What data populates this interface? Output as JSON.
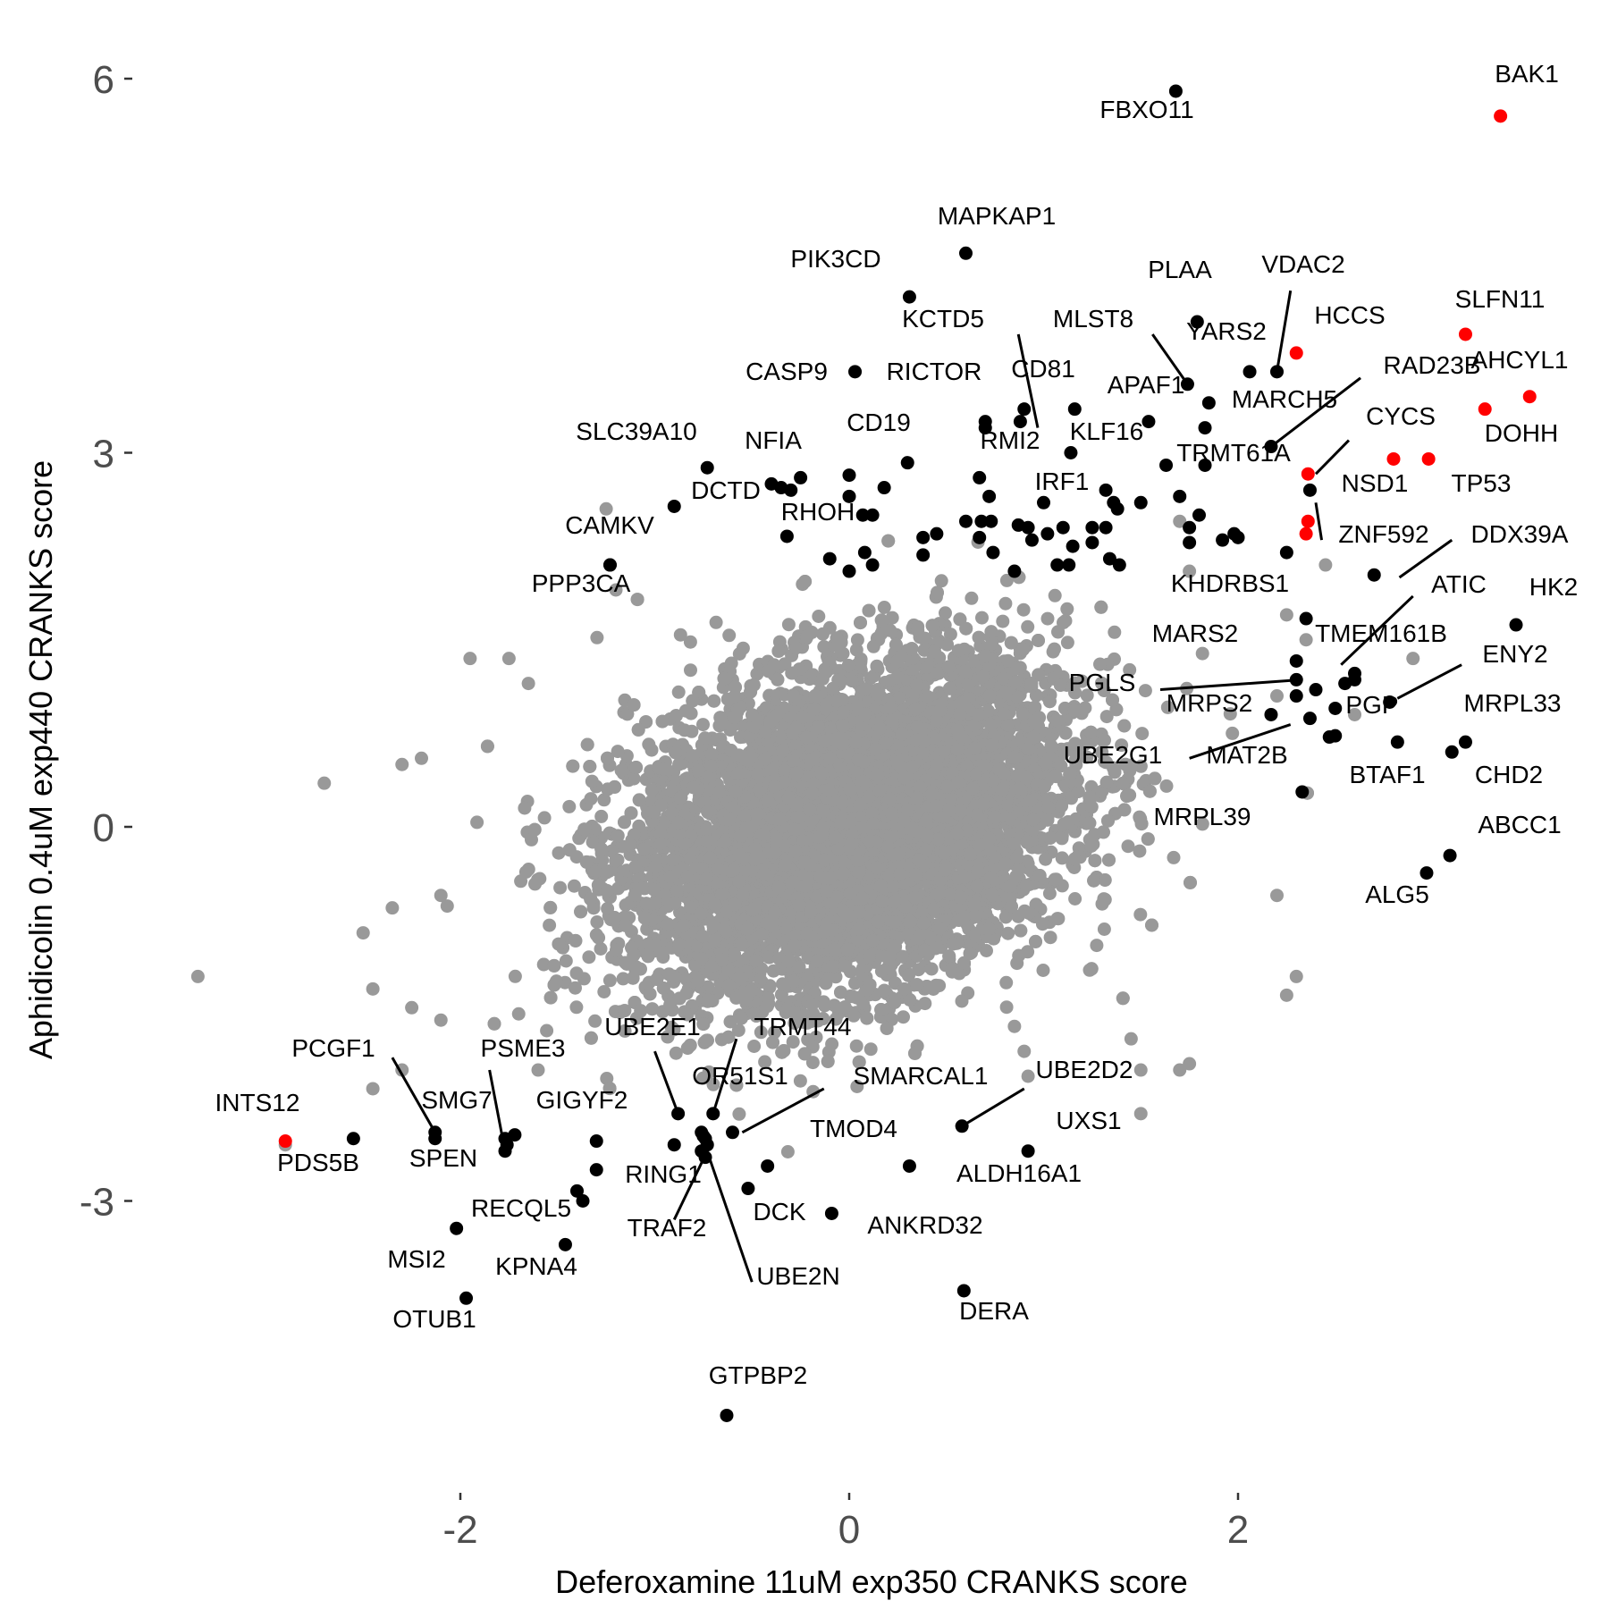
{
  "chart_data": {
    "type": "scatter",
    "title": "",
    "xlabel": "Deferoxamine 11uM exp350 CRANKS score",
    "ylabel": "Aphidicolin 0.4uM exp440 CRANKS score",
    "xlim": [
      -3.4,
      3.85
    ],
    "ylim": [
      -5.0,
      6.2
    ],
    "xticks": [
      -2,
      0,
      2
    ],
    "xtick_labels": [
      "-2",
      "0",
      "2"
    ],
    "yticks": [
      -3,
      0,
      3,
      6
    ],
    "ytick_labels": [
      "-3",
      "0",
      "3",
      "6"
    ],
    "grid": false,
    "legend": false,
    "colors": {
      "background": "#ffffff",
      "other_genes": "#999999",
      "highlight": "#000000",
      "highlight_red": "#ff0000",
      "tick_text": "#4d4d4d"
    },
    "background_cloud": {
      "center": [
        0.0,
        0.0
      ],
      "sd_x": 0.55,
      "sd_y": 0.65,
      "correlation": 0.3,
      "n_points": 9000
    },
    "labeled_points": [
      {
        "label": "BAK1",
        "x": 3.35,
        "y": 5.7,
        "color": "red"
      },
      {
        "label": "FBXO11",
        "x": 1.68,
        "y": 5.9,
        "color": "black"
      },
      {
        "label": "MAPKAP1",
        "x": 0.6,
        "y": 4.6,
        "color": "black"
      },
      {
        "label": "PIK3CD",
        "x": 0.31,
        "y": 4.25,
        "color": "black"
      },
      {
        "label": "PLAA",
        "x": 1.79,
        "y": 4.05,
        "color": "black"
      },
      {
        "label": "VDAC2",
        "x": 2.2,
        "y": 3.65,
        "color": "black"
      },
      {
        "label": "HCCS",
        "x": 2.3,
        "y": 3.8,
        "color": "red"
      },
      {
        "label": "SLFN11",
        "x": 3.17,
        "y": 3.95,
        "color": "red"
      },
      {
        "label": "AHCYL1",
        "x": 3.5,
        "y": 3.45,
        "color": "red"
      },
      {
        "label": "DOHH",
        "x": 3.27,
        "y": 3.35,
        "color": "red"
      },
      {
        "label": "TP53",
        "x": 2.98,
        "y": 2.95,
        "color": "red"
      },
      {
        "label": "CYCS",
        "x": 2.8,
        "y": 2.95,
        "color": "red"
      },
      {
        "label": "KCTD5",
        "x": 0.9,
        "y": 3.35,
        "color": "black"
      },
      {
        "label": "MLST8",
        "x": 1.74,
        "y": 3.55,
        "color": "black"
      },
      {
        "label": "YARS2",
        "x": 2.06,
        "y": 3.65,
        "color": "black"
      },
      {
        "label": "CASP9",
        "x": 0.03,
        "y": 3.65,
        "color": "black"
      },
      {
        "label": "RICTOR",
        "x": 0.7,
        "y": 3.2,
        "color": "black"
      },
      {
        "label": "CD81",
        "x": 0.88,
        "y": 3.25,
        "color": "black"
      },
      {
        "label": "APAF1",
        "x": 1.54,
        "y": 3.25,
        "color": "black"
      },
      {
        "label": "RAD23B",
        "x": 1.85,
        "y": 3.4,
        "color": "black"
      },
      {
        "label": "MARCH5",
        "x": 1.83,
        "y": 3.2,
        "color": "black"
      },
      {
        "label": "KLF16",
        "x": 1.16,
        "y": 3.35,
        "color": "black"
      },
      {
        "label": "RMI2",
        "x": 1.14,
        "y": 3.0,
        "color": "black"
      },
      {
        "label": "CD19",
        "x": 0.3,
        "y": 2.92,
        "color": "black"
      },
      {
        "label": "SLC39A10",
        "x": -0.73,
        "y": 2.88,
        "color": "black"
      },
      {
        "label": "NFIA",
        "x": -0.25,
        "y": 2.8,
        "color": "black"
      },
      {
        "label": "TRMT61A",
        "x": 2.17,
        "y": 3.05,
        "color": "black"
      },
      {
        "label": "NSD1",
        "x": 2.37,
        "y": 2.7,
        "color": "black"
      },
      {
        "label": "IRF1",
        "x": 1.32,
        "y": 2.7,
        "color": "black"
      },
      {
        "label": "DCTD",
        "x": -0.9,
        "y": 2.57,
        "color": "black"
      },
      {
        "label": "RHOH",
        "x": -0.32,
        "y": 2.33,
        "color": "black"
      },
      {
        "label": "ZNF592",
        "x": 2.35,
        "y": 2.35,
        "color": "red"
      },
      {
        "label": "DDX39A",
        "x": 2.7,
        "y": 2.02,
        "color": "black"
      },
      {
        "label": "CAMKV",
        "x": -1.23,
        "y": 2.1,
        "color": "black"
      },
      {
        "label": "PPP3CA",
        "x": -1.23,
        "y": 2.1,
        "color": "black"
      },
      {
        "label": "KHDRBS1",
        "x": 2.35,
        "y": 1.67,
        "color": "black"
      },
      {
        "label": "ATIC",
        "x": 2.6,
        "y": 1.23,
        "color": "black"
      },
      {
        "label": "HK2",
        "x": 3.43,
        "y": 1.62,
        "color": "black"
      },
      {
        "label": "MARS2",
        "x": 2.3,
        "y": 1.33,
        "color": "black"
      },
      {
        "label": "TMEM161B",
        "x": 2.55,
        "y": 1.15,
        "color": "black"
      },
      {
        "label": "PGLS",
        "x": 2.3,
        "y": 1.18,
        "color": "black"
      },
      {
        "label": "ENY2",
        "x": 2.78,
        "y": 1.0,
        "color": "black"
      },
      {
        "label": "PGP",
        "x": 2.5,
        "y": 0.73,
        "color": "black"
      },
      {
        "label": "MRPS2",
        "x": 2.37,
        "y": 0.87,
        "color": "black"
      },
      {
        "label": "MRPL33",
        "x": 3.17,
        "y": 0.68,
        "color": "black"
      },
      {
        "label": "UBE2G1",
        "x": 2.17,
        "y": 0.9,
        "color": "black"
      },
      {
        "label": "MAT2B",
        "x": 2.47,
        "y": 0.72,
        "color": "black"
      },
      {
        "label": "CHD2",
        "x": 3.1,
        "y": 0.6,
        "color": "black"
      },
      {
        "label": "BTAF1",
        "x": 2.82,
        "y": 0.68,
        "color": "black"
      },
      {
        "label": "MRPL39",
        "x": 2.33,
        "y": 0.28,
        "color": "black"
      },
      {
        "label": "ABCC1",
        "x": 3.09,
        "y": -0.23,
        "color": "black"
      },
      {
        "label": "ALG5",
        "x": 2.97,
        "y": -0.37,
        "color": "black"
      },
      {
        "label": "PCGF1",
        "x": -2.13,
        "y": -2.45,
        "color": "black"
      },
      {
        "label": "INTS12",
        "x": -2.9,
        "y": -2.52,
        "color": "red"
      },
      {
        "label": "PDS5B",
        "x": -2.55,
        "y": -2.5,
        "color": "black"
      },
      {
        "label": "PSME3",
        "x": -1.72,
        "y": -2.47,
        "color": "black"
      },
      {
        "label": "SMG7",
        "x": -2.13,
        "y": -2.5,
        "color": "black"
      },
      {
        "label": "SPEN",
        "x": -1.77,
        "y": -2.6,
        "color": "black"
      },
      {
        "label": "GIGYF2",
        "x": -1.3,
        "y": -2.52,
        "color": "black"
      },
      {
        "label": "UBE2E1",
        "x": -0.88,
        "y": -2.3,
        "color": "black"
      },
      {
        "label": "TRMT44",
        "x": -0.7,
        "y": -2.3,
        "color": "black"
      },
      {
        "label": "OR51S1",
        "x": -0.76,
        "y": -2.45,
        "color": "black"
      },
      {
        "label": "SMARCAL1",
        "x": -0.6,
        "y": -2.45,
        "color": "black"
      },
      {
        "label": "UBE2D2",
        "x": 0.58,
        "y": -2.4,
        "color": "black"
      },
      {
        "label": "UXS1",
        "x": 0.92,
        "y": -2.6,
        "color": "black"
      },
      {
        "label": "TMOD4",
        "x": -0.42,
        "y": -2.72,
        "color": "black"
      },
      {
        "label": "ALDH16A1",
        "x": 0.31,
        "y": -2.72,
        "color": "black"
      },
      {
        "label": "RING1",
        "x": -0.73,
        "y": -2.55,
        "color": "black"
      },
      {
        "label": "TRAF2",
        "x": -0.74,
        "y": -2.65,
        "color": "black"
      },
      {
        "label": "DCK",
        "x": -0.52,
        "y": -2.9,
        "color": "black"
      },
      {
        "label": "ANKRD32",
        "x": -0.09,
        "y": -3.1,
        "color": "black"
      },
      {
        "label": "UBE2N",
        "x": -0.75,
        "y": -2.48,
        "color": "black"
      },
      {
        "label": "RECQL5",
        "x": -1.37,
        "y": -3.0,
        "color": "black"
      },
      {
        "label": "MSI2",
        "x": -2.02,
        "y": -3.22,
        "color": "black"
      },
      {
        "label": "KPNA4",
        "x": -1.46,
        "y": -3.35,
        "color": "black"
      },
      {
        "label": "OTUB1",
        "x": -1.97,
        "y": -3.78,
        "color": "black"
      },
      {
        "label": "DERA",
        "x": 0.59,
        "y": -3.72,
        "color": "black"
      },
      {
        "label": "GTPBP2",
        "x": -0.63,
        "y": -4.72,
        "color": "black"
      }
    ],
    "unlabeled_highlight_points": [
      {
        "x": 2.36,
        "y": 2.45,
        "color": "red"
      },
      {
        "x": 2.36,
        "y": 2.83,
        "color": "red"
      },
      {
        "x": -0.4,
        "y": 2.75,
        "color": "black"
      },
      {
        "x": -0.3,
        "y": 2.7,
        "color": "black"
      },
      {
        "x": -0.35,
        "y": 2.72,
        "color": "black"
      },
      {
        "x": 0.0,
        "y": 2.82,
        "color": "black"
      },
      {
        "x": 0.18,
        "y": 2.72,
        "color": "black"
      },
      {
        "x": 0.0,
        "y": 2.65,
        "color": "black"
      },
      {
        "x": 0.07,
        "y": 2.5,
        "color": "black"
      },
      {
        "x": 0.12,
        "y": 2.5,
        "color": "black"
      },
      {
        "x": -0.1,
        "y": 2.15,
        "color": "black"
      },
      {
        "x": 0.08,
        "y": 2.2,
        "color": "black"
      },
      {
        "x": 0.12,
        "y": 2.1,
        "color": "black"
      },
      {
        "x": 0.0,
        "y": 2.05,
        "color": "black"
      },
      {
        "x": 0.38,
        "y": 2.32,
        "color": "black"
      },
      {
        "x": 0.38,
        "y": 2.18,
        "color": "black"
      },
      {
        "x": 0.7,
        "y": 3.25,
        "color": "black"
      },
      {
        "x": 0.67,
        "y": 2.8,
        "color": "black"
      },
      {
        "x": 0.72,
        "y": 2.65,
        "color": "black"
      },
      {
        "x": 0.6,
        "y": 2.45,
        "color": "black"
      },
      {
        "x": 0.68,
        "y": 2.45,
        "color": "black"
      },
      {
        "x": 0.73,
        "y": 2.45,
        "color": "black"
      },
      {
        "x": 0.67,
        "y": 2.32,
        "color": "black"
      },
      {
        "x": 0.74,
        "y": 2.2,
        "color": "black"
      },
      {
        "x": 0.87,
        "y": 2.42,
        "color": "black"
      },
      {
        "x": 0.92,
        "y": 2.4,
        "color": "black"
      },
      {
        "x": 0.94,
        "y": 2.3,
        "color": "black"
      },
      {
        "x": 1.0,
        "y": 2.6,
        "color": "black"
      },
      {
        "x": 1.02,
        "y": 2.35,
        "color": "black"
      },
      {
        "x": 1.1,
        "y": 2.4,
        "color": "black"
      },
      {
        "x": 0.85,
        "y": 2.05,
        "color": "black"
      },
      {
        "x": 1.07,
        "y": 2.1,
        "color": "black"
      },
      {
        "x": 1.13,
        "y": 2.1,
        "color": "black"
      },
      {
        "x": 1.15,
        "y": 2.25,
        "color": "black"
      },
      {
        "x": 1.25,
        "y": 2.28,
        "color": "black"
      },
      {
        "x": 1.25,
        "y": 2.4,
        "color": "black"
      },
      {
        "x": 1.36,
        "y": 2.6,
        "color": "black"
      },
      {
        "x": 1.38,
        "y": 2.55,
        "color": "black"
      },
      {
        "x": 1.39,
        "y": 2.1,
        "color": "black"
      },
      {
        "x": 1.34,
        "y": 2.15,
        "color": "black"
      },
      {
        "x": 1.32,
        "y": 2.4,
        "color": "black"
      },
      {
        "x": 1.5,
        "y": 2.6,
        "color": "black"
      },
      {
        "x": 1.63,
        "y": 2.9,
        "color": "black"
      },
      {
        "x": 1.7,
        "y": 2.65,
        "color": "black"
      },
      {
        "x": 1.75,
        "y": 2.4,
        "color": "black"
      },
      {
        "x": 1.75,
        "y": 2.28,
        "color": "black"
      },
      {
        "x": 1.8,
        "y": 2.5,
        "color": "black"
      },
      {
        "x": 1.83,
        "y": 2.9,
        "color": "black"
      },
      {
        "x": 1.92,
        "y": 2.3,
        "color": "black"
      },
      {
        "x": 1.98,
        "y": 2.35,
        "color": "black"
      },
      {
        "x": 2.0,
        "y": 2.32,
        "color": "black"
      },
      {
        "x": 2.25,
        "y": 2.2,
        "color": "black"
      },
      {
        "x": 2.4,
        "y": 1.1,
        "color": "black"
      },
      {
        "x": 2.3,
        "y": 1.05,
        "color": "black"
      },
      {
        "x": 2.6,
        "y": 1.18,
        "color": "black"
      },
      {
        "x": 2.5,
        "y": 0.95,
        "color": "black"
      },
      {
        "x": 0.45,
        "y": 2.35,
        "color": "black"
      },
      {
        "x": -0.9,
        "y": -2.55,
        "color": "black"
      },
      {
        "x": -1.77,
        "y": -2.5,
        "color": "black"
      },
      {
        "x": -1.76,
        "y": -2.55,
        "color": "black"
      },
      {
        "x": -1.3,
        "y": -2.75,
        "color": "black"
      },
      {
        "x": -1.4,
        "y": -2.92,
        "color": "black"
      },
      {
        "x": -0.74,
        "y": -2.5,
        "color": "black"
      },
      {
        "x": -0.76,
        "y": -2.6,
        "color": "black"
      }
    ],
    "extra_grey_points": [
      {
        "x": -3.35,
        "y": -1.2
      },
      {
        "x": -2.9,
        "y": -2.55
      },
      {
        "x": -2.7,
        "y": 0.35
      },
      {
        "x": -2.5,
        "y": -0.85
      },
      {
        "x": -2.45,
        "y": -1.3
      },
      {
        "x": -2.45,
        "y": -2.1
      },
      {
        "x": -2.3,
        "y": 0.5
      },
      {
        "x": -2.2,
        "y": 0.55
      },
      {
        "x": -2.35,
        "y": -0.65
      },
      {
        "x": -2.25,
        "y": -1.45
      },
      {
        "x": -2.3,
        "y": -1.95
      },
      {
        "x": -2.1,
        "y": -0.55
      },
      {
        "x": -2.1,
        "y": -1.55
      },
      {
        "x": -1.95,
        "y": 1.35
      },
      {
        "x": -1.75,
        "y": 1.35
      },
      {
        "x": -1.65,
        "y": 1.15
      },
      {
        "x": -1.7,
        "y": -1.5
      },
      {
        "x": -1.6,
        "y": -1.95
      },
      {
        "x": -1.25,
        "y": 2.55
      },
      {
        "x": -1.2,
        "y": 1.9
      },
      {
        "x": 1.7,
        "y": 2.45
      },
      {
        "x": 1.75,
        "y": 2.05
      },
      {
        "x": 2.2,
        "y": 1.05
      },
      {
        "x": 2.45,
        "y": 2.1
      },
      {
        "x": 2.25,
        "y": 1.7
      },
      {
        "x": 2.35,
        "y": 1.5
      },
      {
        "x": 2.6,
        "y": 0.9
      },
      {
        "x": 2.9,
        "y": 1.35
      },
      {
        "x": 2.2,
        "y": -0.55
      },
      {
        "x": 2.3,
        "y": -1.2
      },
      {
        "x": 2.25,
        "y": -1.35
      },
      {
        "x": 1.75,
        "y": -1.9
      },
      {
        "x": 1.7,
        "y": -1.95
      },
      {
        "x": 1.5,
        "y": -2.3
      },
      {
        "x": 1.45,
        "y": -1.7
      },
      {
        "x": 1.5,
        "y": -1.95
      },
      {
        "x": 0.9,
        "y": -1.8
      },
      {
        "x": 0.92,
        "y": -2.0
      },
      {
        "x": 0.85,
        "y": -1.6
      }
    ],
    "label_leader_lines": [
      {
        "from": [
          0.97,
          3.2
        ],
        "to": [
          0.87,
          3.95
        ]
      },
      {
        "from": [
          1.74,
          3.55
        ],
        "to": [
          1.56,
          3.95
        ]
      },
      {
        "from": [
          2.2,
          3.65
        ],
        "to": [
          2.27,
          4.3
        ]
      },
      {
        "from": [
          2.17,
          3.05
        ],
        "to": [
          2.63,
          3.6
        ]
      },
      {
        "from": [
          2.4,
          2.83
        ],
        "to": [
          2.57,
          3.1
        ]
      },
      {
        "from": [
          2.4,
          2.6
        ],
        "to": [
          2.43,
          2.3
        ]
      },
      {
        "from": [
          2.83,
          2.0
        ],
        "to": [
          3.1,
          2.3
        ]
      },
      {
        "from": [
          2.53,
          1.3
        ],
        "to": [
          2.9,
          1.85
        ]
      },
      {
        "from": [
          2.33,
          1.18
        ],
        "to": [
          1.6,
          1.1
        ]
      },
      {
        "from": [
          2.82,
          1.03
        ],
        "to": [
          3.15,
          1.3
        ]
      },
      {
        "from": [
          2.27,
          0.82
        ],
        "to": [
          1.75,
          0.55
        ]
      },
      {
        "from": [
          -2.13,
          -2.45
        ],
        "to": [
          -2.35,
          -1.85
        ]
      },
      {
        "from": [
          -1.78,
          -2.52
        ],
        "to": [
          -1.85,
          -1.95
        ]
      },
      {
        "from": [
          -0.88,
          -2.3
        ],
        "to": [
          -1.0,
          -1.8
        ]
      },
      {
        "from": [
          -0.7,
          -2.3
        ],
        "to": [
          -0.58,
          -1.7
        ]
      },
      {
        "from": [
          -0.55,
          -2.45
        ],
        "to": [
          -0.13,
          -2.1
        ]
      },
      {
        "from": [
          0.58,
          -2.4
        ],
        "to": [
          0.9,
          -2.1
        ]
      },
      {
        "from": [
          -0.73,
          -2.6
        ],
        "to": [
          -0.9,
          -3.15
        ]
      },
      {
        "from": [
          -0.72,
          -2.65
        ],
        "to": [
          -0.5,
          -3.65
        ]
      }
    ]
  }
}
